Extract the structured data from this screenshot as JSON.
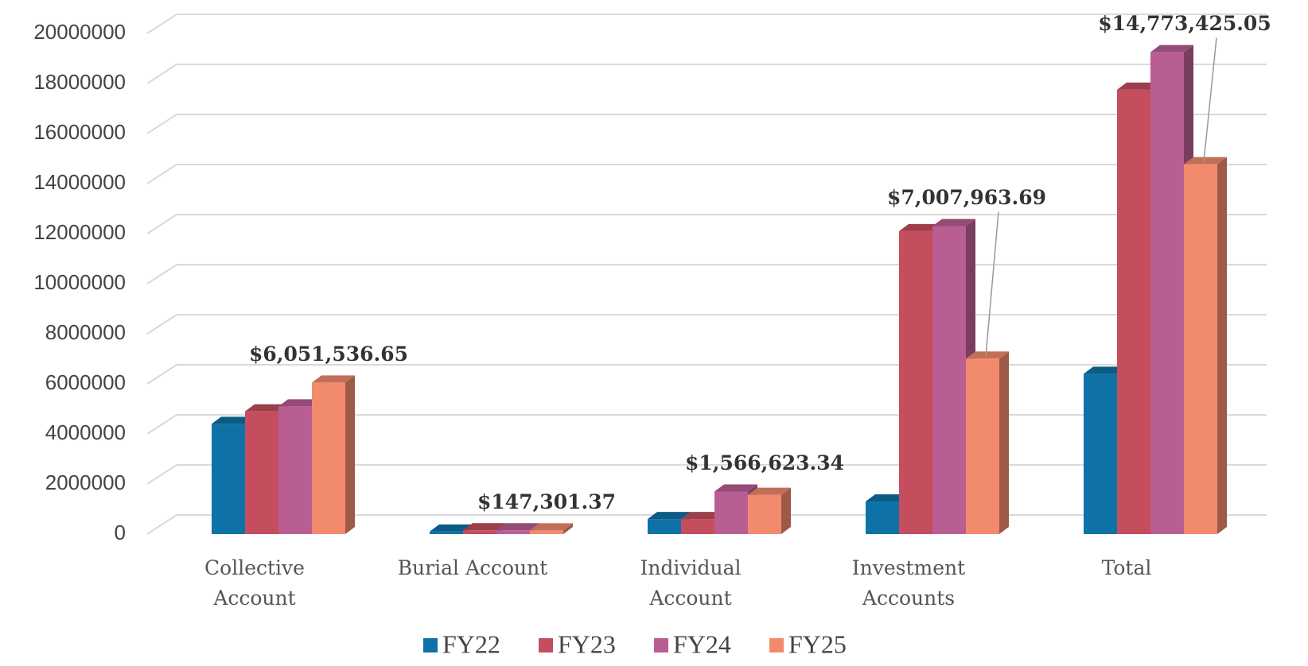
{
  "chart_data": {
    "type": "bar3d",
    "categories": [
      "Collective Account",
      "Burial Account",
      "Individual Account",
      "Investment Accounts",
      "Total"
    ],
    "series": [
      {
        "name": "FY22",
        "color": "#0e72a6",
        "values": [
          4400000,
          100000,
          600000,
          1300000,
          6400000
        ]
      },
      {
        "name": "FY23",
        "color": "#c44e5e",
        "values": [
          4900000,
          150000,
          600000,
          12100000,
          17750000
        ]
      },
      {
        "name": "FY24",
        "color": "#b95e93",
        "values": [
          5100000,
          150000,
          1700000,
          12300000,
          19250000
        ]
      },
      {
        "name": "FY25",
        "color": "#f28b6e",
        "values": [
          6051536.65,
          147301.37,
          1566623.34,
          7007963.69,
          14773425.05
        ],
        "value_labels": [
          "$6,051,536.65",
          "$147,301.37",
          "$1,566,623.34",
          "$7,007,963.69",
          "$14,773,425.05"
        ]
      }
    ],
    "ylim": [
      0,
      20000000
    ],
    "yticks": [
      0,
      2000000,
      4000000,
      6000000,
      8000000,
      10000000,
      12000000,
      14000000,
      16000000,
      18000000,
      20000000
    ],
    "grid": true,
    "legend": "bottom"
  }
}
